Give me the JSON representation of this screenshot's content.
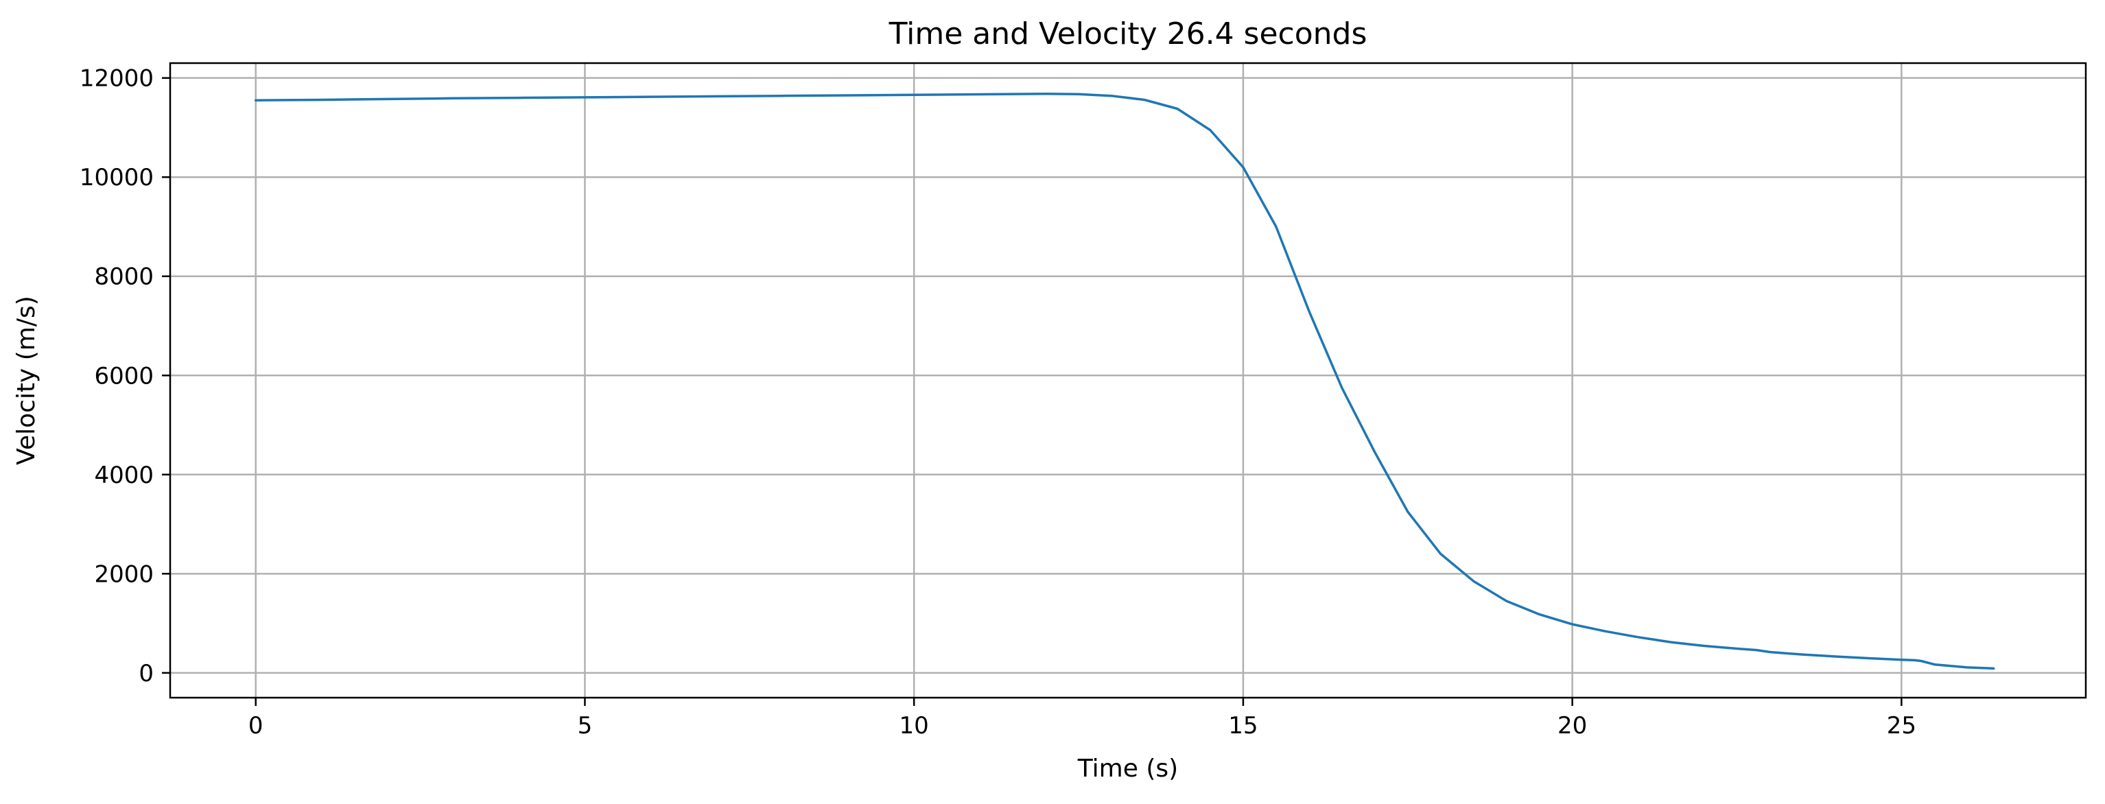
{
  "chart_data": {
    "type": "line",
    "title": "Time and Velocity 26.4 seconds",
    "xlabel": "Time (s)",
    "ylabel": "Velocity (m/s)",
    "xlim": [
      -1.3,
      27.8
    ],
    "ylim": [
      -500,
      12300
    ],
    "xticks": [
      0,
      5,
      10,
      15,
      20,
      25
    ],
    "xtick_labels": [
      "0",
      "5",
      "10",
      "15",
      "20",
      "25"
    ],
    "yticks": [
      0,
      2000,
      4000,
      6000,
      8000,
      10000,
      12000
    ],
    "ytick_labels": [
      "0",
      "2000",
      "4000",
      "6000",
      "8000",
      "10000",
      "12000"
    ],
    "grid": true,
    "line_color": "#1f77b4",
    "series": [
      {
        "x": [
          0,
          1,
          2,
          3,
          4,
          5,
          6,
          7,
          8,
          9,
          10,
          11,
          12,
          12.5,
          13,
          13.5,
          14,
          14.5,
          15,
          15.5,
          16,
          16.5,
          17,
          17.5,
          18,
          18.5,
          19,
          19.5,
          20,
          20.5,
          21,
          21.5,
          22,
          22.5,
          22.8,
          23,
          23.5,
          24,
          24.5,
          25,
          25.2,
          25.3,
          25.5,
          26,
          26.4
        ],
        "y": [
          11550,
          11560,
          11575,
          11590,
          11600,
          11610,
          11620,
          11630,
          11640,
          11650,
          11660,
          11670,
          11680,
          11675,
          11640,
          11560,
          11380,
          10950,
          10200,
          9000,
          7300,
          5750,
          4450,
          3250,
          2400,
          1850,
          1450,
          1180,
          980,
          840,
          720,
          620,
          545,
          490,
          460,
          420,
          370,
          330,
          295,
          265,
          255,
          240,
          170,
          110,
          90
        ]
      }
    ]
  }
}
